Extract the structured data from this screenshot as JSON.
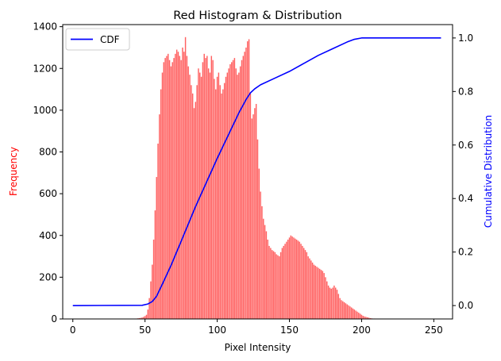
{
  "chart_data": {
    "type": "bar",
    "title": "Red Histogram & Distribution",
    "xlabel": "Pixel Intensity",
    "ylabel": "Frequency",
    "y2label": "Cumulative Distribution",
    "xlim": [
      -7,
      263
    ],
    "ylim": [
      0,
      1410
    ],
    "y2lim": [
      -0.05,
      1.05
    ],
    "x_ticks": [
      0,
      50,
      100,
      150,
      200,
      250
    ],
    "y_ticks": [
      0,
      200,
      400,
      600,
      800,
      1000,
      1200,
      1400
    ],
    "y2_ticks": [
      0.0,
      0.2,
      0.4,
      0.6,
      0.8,
      1.0
    ],
    "grid": false,
    "legend_position": "top-left",
    "colors": {
      "histogram": "#ff6161",
      "cdf": "#0000ff",
      "ylabel": "#ff0000",
      "y2label": "#0000ff"
    },
    "series": [
      {
        "type": "bar",
        "x_start": 0,
        "values": [
          0,
          0,
          0,
          0,
          0,
          0,
          0,
          0,
          0,
          0,
          0,
          0,
          0,
          0,
          0,
          0,
          0,
          0,
          0,
          0,
          0,
          0,
          0,
          0,
          0,
          0,
          0,
          0,
          0,
          0,
          0,
          0,
          0,
          0,
          0,
          0,
          0,
          0,
          0,
          0,
          0,
          1,
          1,
          1,
          2,
          3,
          4,
          5,
          7,
          10,
          14,
          20,
          45,
          100,
          180,
          260,
          380,
          520,
          680,
          840,
          980,
          1100,
          1180,
          1230,
          1250,
          1260,
          1270,
          1240,
          1210,
          1230,
          1250,
          1270,
          1290,
          1280,
          1260,
          1240,
          1300,
          1280,
          1350,
          1260,
          1210,
          1170,
          1120,
          1080,
          1010,
          1040,
          1120,
          1200,
          1180,
          1160,
          1230,
          1270,
          1250,
          1260,
          1200,
          1180,
          1260,
          1240,
          1150,
          1100,
          1160,
          1180,
          1120,
          1080,
          1100,
          1130,
          1160,
          1180,
          1200,
          1220,
          1230,
          1240,
          1250,
          1200,
          1170,
          1180,
          1210,
          1240,
          1260,
          1280,
          1300,
          1330,
          1340,
          1080,
          960,
          980,
          1010,
          1030,
          860,
          720,
          610,
          540,
          480,
          450,
          420,
          380,
          350,
          340,
          330,
          325,
          320,
          310,
          305,
          300,
          320,
          340,
          350,
          360,
          370,
          380,
          390,
          400,
          395,
          390,
          385,
          380,
          375,
          370,
          360,
          350,
          340,
          330,
          320,
          300,
          290,
          280,
          270,
          260,
          255,
          250,
          245,
          240,
          235,
          230,
          220,
          200,
          180,
          160,
          150,
          145,
          150,
          160,
          150,
          140,
          120,
          100,
          90,
          85,
          80,
          75,
          70,
          65,
          60,
          55,
          50,
          45,
          40,
          35,
          30,
          25,
          20,
          15,
          12,
          10,
          8,
          6,
          4,
          3,
          2,
          2,
          1,
          1,
          1,
          0,
          0,
          0,
          0,
          0,
          0,
          0,
          0,
          0,
          0,
          0,
          0,
          0,
          0,
          0,
          0,
          0,
          0,
          0,
          0,
          0,
          0,
          0,
          0,
          0,
          0,
          0,
          0,
          0,
          0,
          0,
          0,
          0,
          0,
          0,
          0,
          0,
          0,
          0,
          0,
          0,
          0,
          0,
          0,
          0,
          0,
          0,
          0,
          0,
          0,
          0,
          0,
          0,
          0,
          0,
          0,
          0,
          0,
          0,
          0,
          0,
          0,
          0,
          0
        ]
      },
      {
        "type": "line",
        "name": "CDF",
        "axis": "right",
        "x": [
          0,
          48,
          52,
          55,
          58,
          62,
          68,
          75,
          85,
          100,
          115,
          120,
          123,
          126,
          130,
          140,
          150,
          160,
          170,
          180,
          190,
          195,
          200,
          210,
          255
        ],
        "values": [
          0,
          0.001,
          0.006,
          0.015,
          0.035,
          0.08,
          0.15,
          0.24,
          0.37,
          0.55,
          0.72,
          0.77,
          0.795,
          0.81,
          0.825,
          0.85,
          0.875,
          0.905,
          0.935,
          0.96,
          0.985,
          0.995,
          1.0,
          1.0,
          1.0
        ]
      }
    ]
  }
}
